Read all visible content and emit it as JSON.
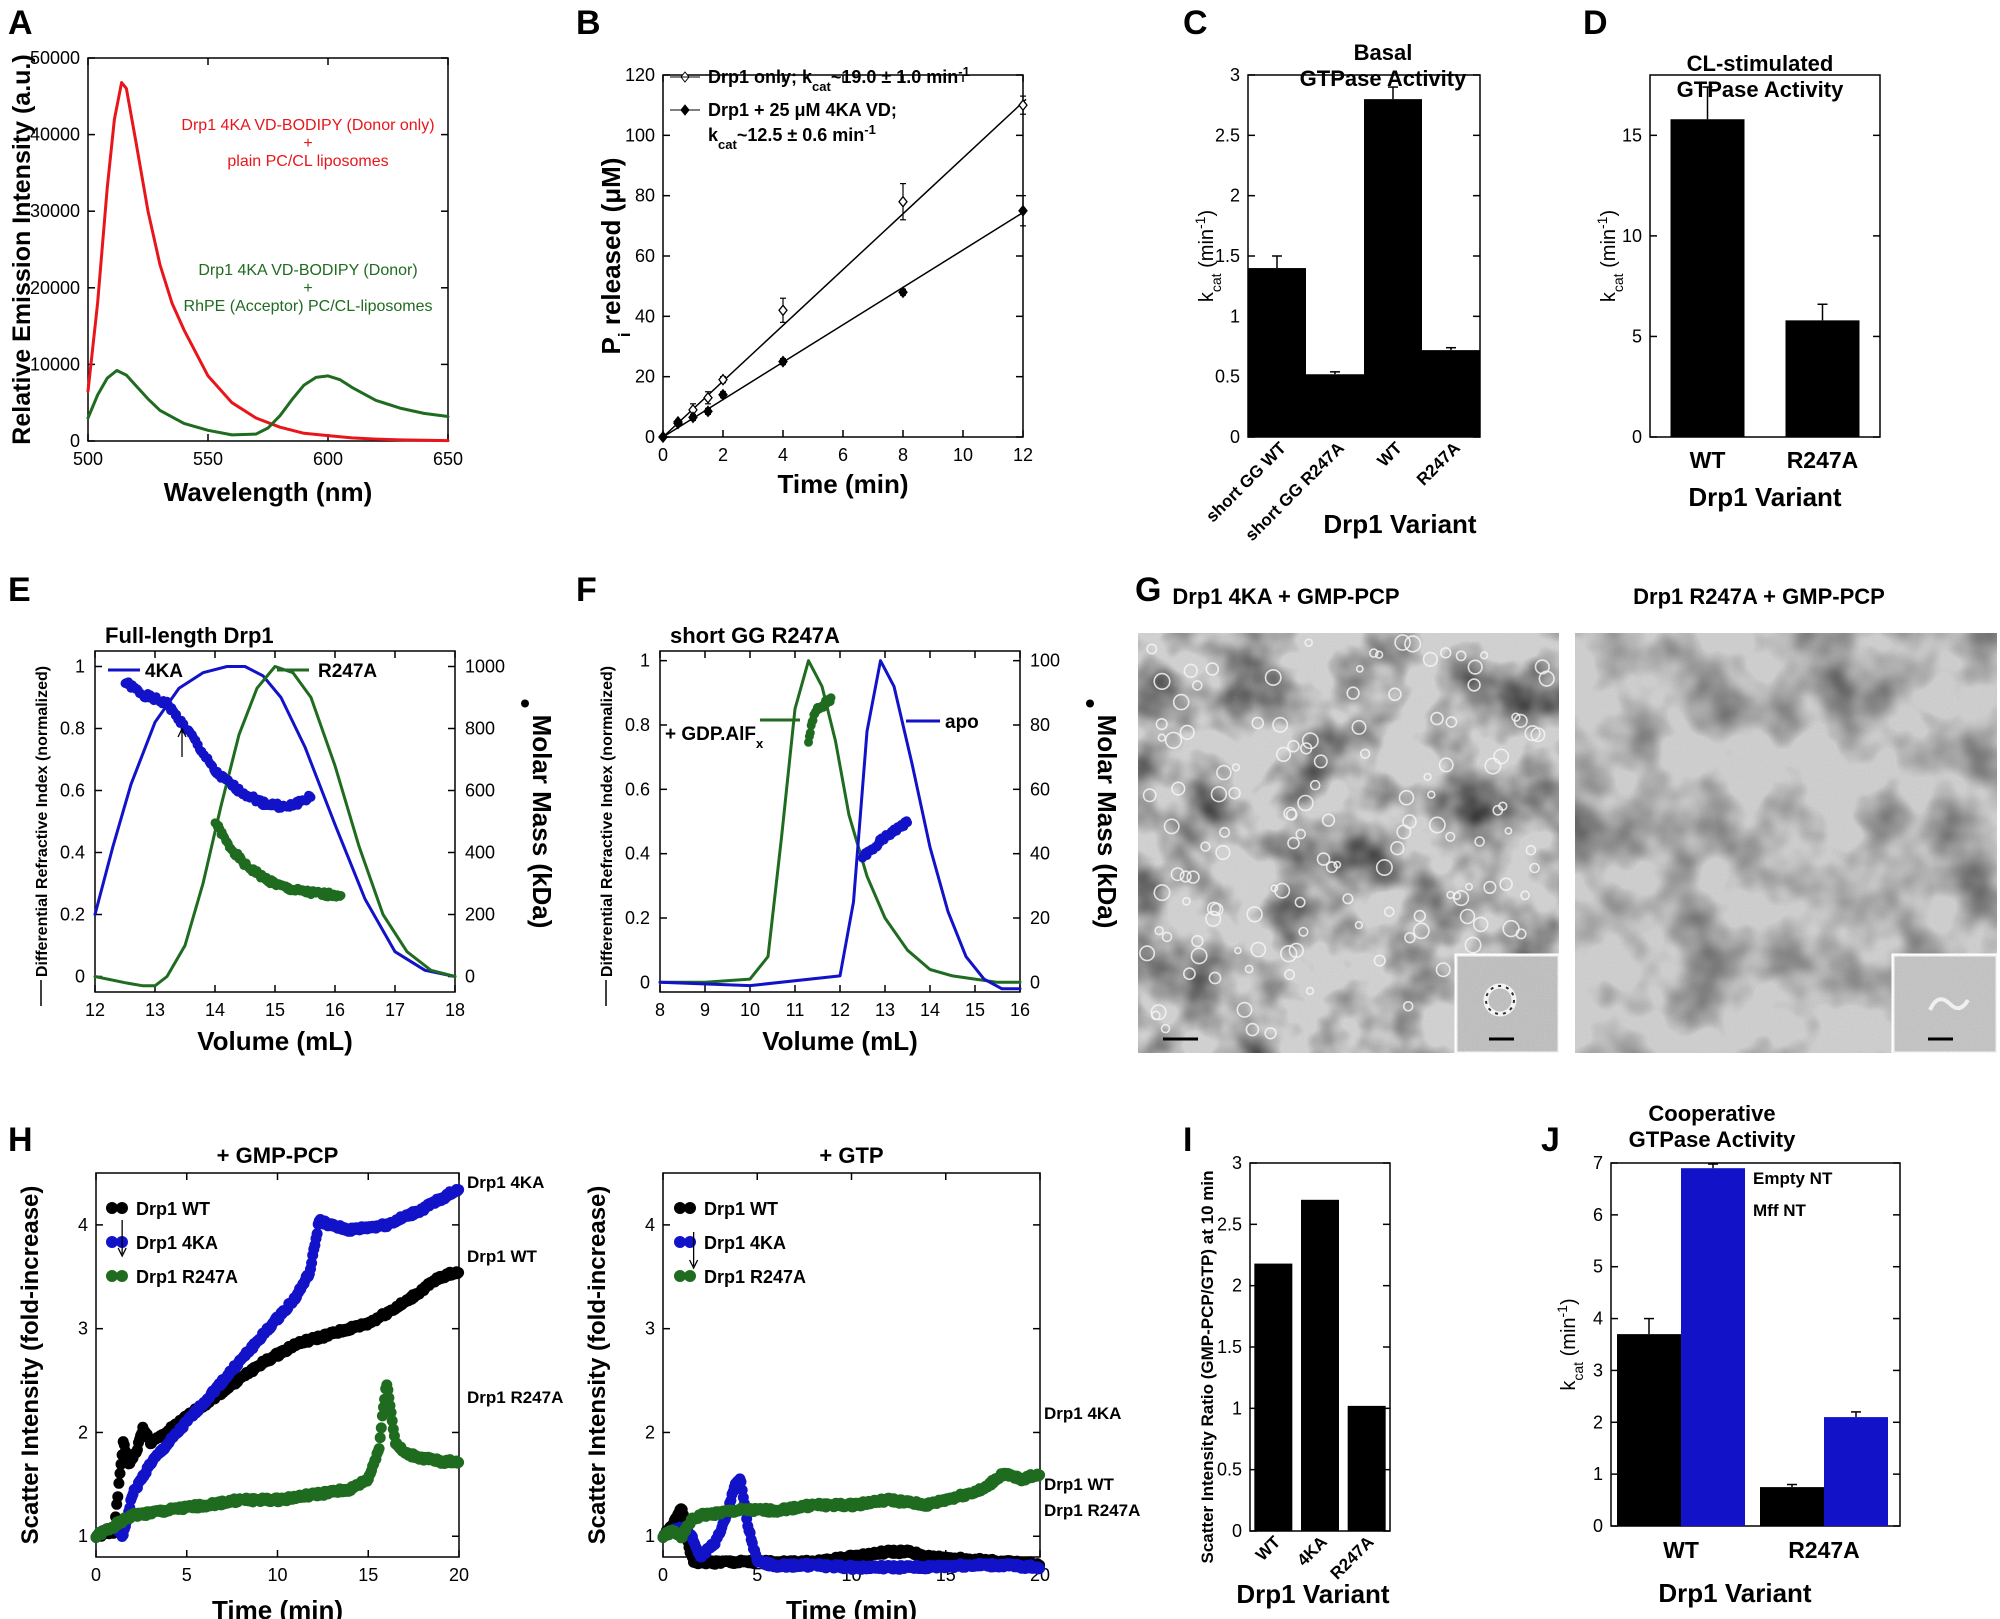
{
  "panel_letters": {
    "A": "A",
    "B": "B",
    "C": "C",
    "D": "D",
    "E": "E",
    "F": "F",
    "G": "G",
    "H": "H",
    "I": "I",
    "J": "J"
  },
  "colors": {
    "red": "#e8161b",
    "green": "#1f6b1f",
    "blue": "#1212c8",
    "black": "#000000",
    "grey": "#9a9a9a"
  },
  "chart_data": [
    {
      "id": "A",
      "type": "line",
      "title": "",
      "xlabel": "Wavelength (nm)",
      "ylabel": "Relative Emission Intensity (a.u.)",
      "xlim": [
        500,
        650
      ],
      "ylim": [
        0,
        50000
      ],
      "xticks": [
        500,
        550,
        600,
        650
      ],
      "yticks": [
        0,
        10000,
        20000,
        30000,
        40000,
        50000
      ],
      "series": [
        {
          "name": "Drp1 4KA VD-BODIPY (Donor only) + plain PC/CL liposomes",
          "color": "#e8161b",
          "x": [
            500,
            504,
            508,
            511,
            514,
            516,
            520,
            525,
            530,
            535,
            540,
            550,
            560,
            570,
            580,
            590,
            600,
            610,
            620,
            630,
            640,
            650
          ],
          "y": [
            6500,
            18000,
            33000,
            42000,
            46800,
            46000,
            39000,
            30000,
            23000,
            18000,
            14500,
            8500,
            5000,
            3000,
            1800,
            1000,
            700,
            400,
            250,
            150,
            100,
            50
          ]
        },
        {
          "name": "Drp1 4KA VD-BODIPY (Donor) + RhPE (Acceptor) PC/CL-liposomes",
          "color": "#1f6b1f",
          "x": [
            500,
            504,
            508,
            512,
            516,
            520,
            525,
            530,
            540,
            550,
            560,
            570,
            575,
            580,
            585,
            590,
            595,
            600,
            605,
            610,
            620,
            630,
            640,
            650
          ],
          "y": [
            3000,
            6000,
            8200,
            9200,
            8600,
            7200,
            5500,
            4000,
            2300,
            1400,
            800,
            900,
            1700,
            3300,
            5400,
            7300,
            8300,
            8500,
            8000,
            7000,
            5300,
            4300,
            3600,
            3200
          ]
        }
      ],
      "annotations": [
        {
          "line1": "Drp1 4KA VD-BODIPY (Donor only)",
          "line2": "+",
          "line3": "plain PC/CL liposomes"
        },
        {
          "line1": "Drp1 4KA VD-BODIPY (Donor)",
          "line2": "+",
          "line3": "RhPE (Acceptor) PC/CL-liposomes"
        }
      ]
    },
    {
      "id": "B",
      "type": "scatter",
      "xlabel": "Time (min)",
      "ylabel": "P",
      "ylabel_sub": "i",
      "ylabel_rest": " released (μM)",
      "xlim": [
        0,
        12
      ],
      "ylim": [
        0,
        120
      ],
      "xticks": [
        0,
        2,
        4,
        6,
        8,
        10,
        12
      ],
      "yticks": [
        0,
        20,
        40,
        60,
        80,
        100,
        120
      ],
      "series": [
        {
          "name": "Drp1 only",
          "legend_pre": "Drp1 only; k",
          "legend_sub": "cat",
          "legend_post": "~19.0 ± 1.0 min",
          "legend_sup": "-1",
          "marker": "open-diamond",
          "x": [
            0,
            0.5,
            1,
            1.5,
            2,
            4,
            8,
            12
          ],
          "y": [
            0,
            5,
            9,
            13,
            19,
            42,
            78,
            110
          ],
          "err": [
            0,
            0,
            2,
            2,
            1,
            4,
            6,
            3
          ],
          "slope": 9.25
        },
        {
          "name": "Drp1 + 25 μM 4KA VD",
          "legend_pre": "Drp1 + 25 μM 4KA VD;",
          "legend_line2_pre": "k",
          "legend_sub": "cat",
          "legend_post": "~12.5 ± 0.6 min",
          "legend_sup": "-1",
          "marker": "filled-diamond",
          "x": [
            0,
            0.5,
            1,
            1.5,
            2,
            4,
            8,
            12
          ],
          "y": [
            0,
            4.5,
            6.5,
            8.5,
            14,
            25,
            48,
            75
          ],
          "err": [
            0,
            0,
            1,
            1,
            1,
            1,
            1,
            5
          ],
          "slope": 6.2
        }
      ]
    },
    {
      "id": "C",
      "type": "bar",
      "title_line1": "Basal",
      "title_line2": "GTPase Activity",
      "xlabel": "Drp1 Variant",
      "ylabel": "k",
      "ylabel_sub": "cat",
      "ylabel_rest": " (min",
      "ylabel_sup": "-1",
      "ylabel_end": ")",
      "ylim": [
        0,
        3
      ],
      "yticks": [
        0,
        0.5,
        1,
        1.5,
        2,
        2.5,
        3
      ],
      "categories": [
        "short GG WT",
        "short GG R247A",
        "WT",
        "R247A"
      ],
      "values": [
        1.4,
        0.52,
        2.8,
        0.72
      ],
      "err": [
        0.1,
        0.02,
        0.1,
        0.02
      ]
    },
    {
      "id": "D",
      "type": "bar",
      "title_line1": "CL-stimulated",
      "title_line2": "GTPase Activity",
      "xlabel": "Drp1 Variant",
      "ylabel": "k",
      "ylabel_sub": "cat",
      "ylabel_rest": " (min",
      "ylabel_sup": "-1",
      "ylabel_end": ")",
      "ylim": [
        0,
        18
      ],
      "yticks": [
        0,
        5,
        10,
        15
      ],
      "categories": [
        "WT",
        "R247A"
      ],
      "values": [
        15.8,
        5.8
      ],
      "err": [
        1.6,
        0.8
      ]
    },
    {
      "id": "E",
      "type": "line",
      "title": "Full-length Drp1",
      "xlabel": "Volume (mL)",
      "ylabel": "Differential Refractive Index (normalized)",
      "y2label": "Molar Mass (kDa)",
      "xlim": [
        12,
        18
      ],
      "ylim": [
        -0.05,
        1.05
      ],
      "y2lim": [
        -50,
        1050
      ],
      "xticks": [
        12,
        13,
        14,
        15,
        16,
        17,
        18
      ],
      "yticks": [
        0,
        0.2,
        0.4,
        0.6,
        0.8,
        1
      ],
      "y2ticks": [
        0,
        200,
        400,
        600,
        800,
        1000
      ],
      "series": [
        {
          "name": "4KA",
          "color": "#1212c8",
          "x": [
            12,
            12.3,
            12.6,
            13,
            13.4,
            13.8,
            14.2,
            14.5,
            14.8,
            15.1,
            15.5,
            16,
            16.5,
            17,
            17.5,
            18
          ],
          "y": [
            0.2,
            0.42,
            0.62,
            0.82,
            0.93,
            0.98,
            1.0,
            1.0,
            0.97,
            0.9,
            0.74,
            0.49,
            0.25,
            0.08,
            0.02,
            0
          ]
        },
        {
          "name": "R247A",
          "color": "#1f6b1f",
          "x": [
            12,
            12.5,
            12.8,
            13,
            13.2,
            13.5,
            13.8,
            14.1,
            14.4,
            14.7,
            15,
            15.3,
            15.6,
            16,
            16.4,
            16.8,
            17.2,
            17.6,
            18
          ],
          "y": [
            0,
            -0.02,
            -0.03,
            -0.03,
            0,
            0.1,
            0.3,
            0.55,
            0.78,
            0.93,
            1.0,
            0.98,
            0.9,
            0.68,
            0.42,
            0.2,
            0.08,
            0.02,
            0
          ]
        }
      ],
      "mass_series": [
        {
          "name": "4KA mass",
          "color": "#1212c8",
          "x": [
            12.5,
            12.8,
            13.2,
            13.6,
            14,
            14.4,
            14.8,
            15.2,
            15.6
          ],
          "y": [
            950,
            910,
            880,
            780,
            660,
            600,
            560,
            545,
            580
          ]
        },
        {
          "name": "R247A mass",
          "color": "#1f6b1f",
          "x": [
            14,
            14.2,
            14.5,
            14.8,
            15.1,
            15.4,
            15.8,
            16.1
          ],
          "y": [
            500,
            430,
            360,
            320,
            290,
            275,
            265,
            265
          ]
        }
      ]
    },
    {
      "id": "F",
      "type": "line",
      "title": "short GG R247A",
      "xlabel": "Volume (mL)",
      "ylabel": "Differential Refractive Index (normalized)",
      "y2label": "Molar Mass (kDa)",
      "xlim": [
        8,
        16
      ],
      "ylim": [
        -0.03,
        1.03
      ],
      "y2lim": [
        -3,
        103
      ],
      "xticks": [
        8,
        9,
        10,
        11,
        12,
        13,
        14,
        15,
        16
      ],
      "yticks": [
        0,
        0.2,
        0.4,
        0.6,
        0.8,
        1
      ],
      "y2ticks": [
        0,
        20,
        40,
        60,
        80,
        100
      ],
      "series": [
        {
          "name": "+ GDP.AlF",
          "name_sub": "x",
          "color": "#1f6b1f",
          "x": [
            8,
            9,
            10,
            10.4,
            10.7,
            11,
            11.3,
            11.6,
            11.9,
            12.2,
            12.6,
            13,
            13.5,
            14,
            14.5,
            15,
            15.5,
            16
          ],
          "y": [
            0,
            0,
            0.01,
            0.08,
            0.45,
            0.85,
            1.0,
            0.92,
            0.75,
            0.52,
            0.33,
            0.2,
            0.1,
            0.04,
            0.02,
            0.01,
            0,
            0
          ]
        },
        {
          "name": "apo",
          "color": "#1212c8",
          "x": [
            8,
            10,
            12,
            12.3,
            12.6,
            12.9,
            13.2,
            13.6,
            14,
            14.4,
            14.8,
            15.2,
            15.6,
            16
          ],
          "y": [
            0,
            -0.01,
            0.02,
            0.25,
            0.78,
            1.0,
            0.92,
            0.68,
            0.42,
            0.22,
            0.08,
            0.01,
            -0.02,
            -0.02
          ]
        }
      ],
      "mass_series": [
        {
          "name": "GDP.AlF mass",
          "color": "#1f6b1f",
          "x": [
            11.3,
            11.4,
            11.5,
            11.6,
            11.8
          ],
          "y": [
            75,
            82,
            85,
            86,
            88
          ]
        },
        {
          "name": "apo mass",
          "color": "#1212c8",
          "x": [
            12.5,
            12.7,
            12.9,
            13.1,
            13.3,
            13.5
          ],
          "y": [
            39,
            41,
            44,
            46,
            48,
            50
          ]
        }
      ]
    },
    {
      "id": "H1",
      "type": "scatter",
      "title": "+ GMP-PCP",
      "xlabel": "Time (min)",
      "ylabel": "Scatter Intensity (fold-increase)",
      "xlim": [
        0,
        20
      ],
      "ylim": [
        0.8,
        4.5
      ],
      "xticks": [
        0,
        5,
        10,
        15,
        20
      ],
      "yticks": [
        1,
        2,
        3,
        4
      ],
      "series": [
        {
          "name": "Drp1 WT",
          "end_label": "Drp1 WT",
          "color": "#000000",
          "x": [
            0,
            1,
            1.5,
            1.8,
            2.2,
            2.6,
            3,
            3.5,
            5,
            7,
            9,
            11,
            13,
            15,
            17,
            19,
            20
          ],
          "y": [
            1,
            1.05,
            1.9,
            1.7,
            1.8,
            2.05,
            1.9,
            1.95,
            2.15,
            2.4,
            2.65,
            2.85,
            2.95,
            3.05,
            3.25,
            3.5,
            3.55
          ]
        },
        {
          "name": "Drp1 4KA",
          "end_label": "Drp1 4KA",
          "color": "#1212c8",
          "x": [
            0,
            1,
            1.5,
            2,
            3,
            5,
            7,
            9,
            11,
            11.8,
            12.3,
            12.8,
            14,
            16,
            18,
            20
          ],
          "y": [
            1,
            1.1,
            1.0,
            1.4,
            1.7,
            2.1,
            2.5,
            2.9,
            3.3,
            3.55,
            4.05,
            4.0,
            3.95,
            4.0,
            4.15,
            4.35
          ]
        },
        {
          "name": "Drp1 R247A",
          "end_label": "Drp1 R247A",
          "color": "#1f6b1f",
          "x": [
            0,
            1,
            2,
            4,
            6,
            8,
            10,
            12,
            14,
            15,
            15.6,
            16,
            16.5,
            17,
            18,
            19,
            20
          ],
          "y": [
            1.0,
            1.1,
            1.2,
            1.25,
            1.3,
            1.35,
            1.35,
            1.4,
            1.45,
            1.55,
            1.85,
            2.5,
            1.9,
            1.8,
            1.75,
            1.72,
            1.72
          ]
        }
      ],
      "arrow_x": 1.0
    },
    {
      "id": "H2",
      "type": "scatter",
      "title": "+ GTP",
      "xlabel": "Time (min)",
      "ylabel": "Scatter Intensity (fold-increase)",
      "xlim": [
        0,
        20
      ],
      "ylim": [
        0.8,
        4.5
      ],
      "xticks": [
        0,
        5,
        10,
        15,
        20
      ],
      "yticks": [
        1,
        2,
        3,
        4
      ],
      "series": [
        {
          "name": "Drp1 WT",
          "end_label": "Drp1 WT",
          "color": "#000000",
          "x": [
            0,
            0.5,
            1,
            1.3,
            1.6,
            2,
            4,
            6,
            8,
            10,
            12,
            13,
            14,
            16,
            18,
            20
          ],
          "y": [
            1,
            1.1,
            1.3,
            0.95,
            0.75,
            0.75,
            0.75,
            0.75,
            0.75,
            0.8,
            0.85,
            0.85,
            0.8,
            0.78,
            0.75,
            0.73
          ]
        },
        {
          "name": "Drp1 4KA",
          "end_label": "Drp1 4KA",
          "color": "#1212c8",
          "x": [
            0,
            1,
            1.5,
            2,
            2.8,
            3.4,
            3.8,
            4.1,
            4.5,
            5,
            6,
            8,
            10,
            12,
            14,
            16,
            18,
            20
          ],
          "y": [
            1,
            1.1,
            1.0,
            0.8,
            0.95,
            1.2,
            1.5,
            1.55,
            1.1,
            0.75,
            0.72,
            0.72,
            0.7,
            0.7,
            0.7,
            0.72,
            0.72,
            0.7
          ]
        },
        {
          "name": "Drp1 R247A",
          "end_label": "Drp1 R247A",
          "color": "#1f6b1f",
          "x": [
            0,
            0.5,
            1,
            1.5,
            2,
            4,
            6,
            8,
            10,
            12,
            14,
            16,
            17,
            18,
            19,
            20
          ],
          "y": [
            1,
            1.05,
            1.0,
            1.15,
            1.2,
            1.25,
            1.25,
            1.3,
            1.3,
            1.35,
            1.3,
            1.4,
            1.45,
            1.6,
            1.55,
            1.6
          ]
        }
      ],
      "arrow_x": 1.2
    },
    {
      "id": "I",
      "type": "bar",
      "xlabel": "Drp1 Variant",
      "ylabel": "Scatter Intensity Ratio (GMP-PCP/GTP) at 10 min",
      "ylim": [
        0,
        3
      ],
      "yticks": [
        0,
        0.5,
        1,
        1.5,
        2,
        2.5,
        3
      ],
      "categories": [
        "WT",
        "4KA",
        "R247A"
      ],
      "values": [
        2.18,
        2.7,
        1.02
      ]
    },
    {
      "id": "J",
      "type": "bar",
      "title_line1": "Cooperative",
      "title_line2": "GTPase Activity",
      "xlabel": "Drp1 Variant",
      "ylabel": "k",
      "ylabel_sub": "cat",
      "ylabel_rest": " (min",
      "ylabel_sup": "-1",
      "ylabel_end": ")",
      "ylim": [
        0,
        7
      ],
      "yticks": [
        0,
        1,
        2,
        3,
        4,
        5,
        6,
        7
      ],
      "categories": [
        "WT",
        "R247A"
      ],
      "series": [
        {
          "name": "Empty NT",
          "color": "#000000",
          "values": [
            3.7,
            0.75
          ],
          "err": [
            0.3,
            0.05
          ]
        },
        {
          "name": "Mff NT",
          "color": "#1212c8",
          "values": [
            6.9,
            2.1
          ],
          "err": [
            0.08,
            0.1
          ]
        }
      ]
    }
  ],
  "panel_g": {
    "left_title": "Drp1 4KA + GMP-PCP",
    "right_title": "Drp1 R247A + GMP-PCP"
  }
}
